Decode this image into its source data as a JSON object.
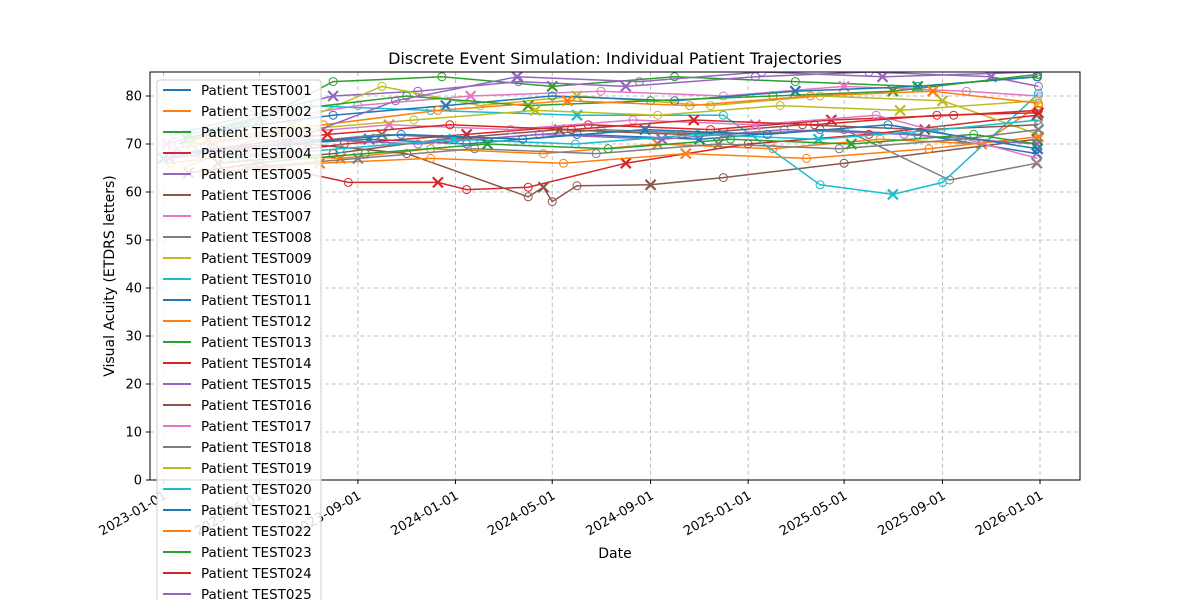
{
  "chart_data": {
    "type": "line",
    "title": "Discrete Event Simulation: Individual Patient Trajectories",
    "xlabel": "Date",
    "ylabel": "Visual Acuity (ETDRS letters)",
    "x_ticks": [
      "2023-01-01",
      "2023-05-01",
      "2023-09-01",
      "2024-01-01",
      "2024-05-01",
      "2024-09-01",
      "2025-01-01",
      "2025-05-01",
      "2025-09-01",
      "2026-01-01"
    ],
    "y_ticks": [
      0,
      10,
      20,
      30,
      40,
      50,
      60,
      70,
      80
    ],
    "xlim": [
      "2022-12-15",
      "2026-02-20"
    ],
    "ylim": [
      0,
      85
    ],
    "grid": true,
    "legend_position": "upper-left",
    "markers": {
      "visit": "circle (open)",
      "injection": "x"
    },
    "series": [
      {
        "name": "Patient TEST001",
        "color": "#1f77b4",
        "points": [
          [
            "2023-01-01",
            67
          ],
          [
            "2023-03-01",
            69
          ],
          [
            "2023-06-01",
            70
          ],
          [
            "2023-09-15",
            71
          ],
          [
            "2024-01-15",
            70
          ],
          [
            "2024-06-01",
            72
          ],
          [
            "2024-11-01",
            71
          ],
          [
            "2025-04-01",
            73
          ],
          [
            "2025-08-01",
            72
          ],
          [
            "2025-12-28",
            68
          ]
        ]
      },
      {
        "name": "Patient TEST002",
        "color": "#ff7f0e",
        "points": [
          [
            "2023-01-10",
            66
          ],
          [
            "2023-04-15",
            68
          ],
          [
            "2023-08-10",
            67
          ],
          [
            "2023-12-01",
            69
          ],
          [
            "2024-04-20",
            68
          ],
          [
            "2024-09-10",
            70
          ],
          [
            "2025-02-01",
            69
          ],
          [
            "2025-06-15",
            71
          ],
          [
            "2025-10-20",
            70
          ],
          [
            "2025-12-30",
            78
          ]
        ]
      },
      {
        "name": "Patient TEST003",
        "color": "#2ca02c",
        "points": [
          [
            "2023-01-20",
            70
          ],
          [
            "2023-05-01",
            75
          ],
          [
            "2023-08-01",
            83
          ],
          [
            "2023-12-15",
            84
          ],
          [
            "2024-05-01",
            82
          ],
          [
            "2024-10-01",
            84
          ],
          [
            "2025-03-01",
            83
          ],
          [
            "2025-08-01",
            82
          ],
          [
            "2025-12-29",
            84
          ]
        ]
      },
      {
        "name": "Patient TEST004",
        "color": "#d62728",
        "points": [
          [
            "2023-02-01",
            64
          ],
          [
            "2023-05-01",
            66
          ],
          [
            "2023-08-20",
            62
          ],
          [
            "2023-12-10",
            62
          ],
          [
            "2024-01-15",
            60.5
          ],
          [
            "2024-04-01",
            61
          ],
          [
            "2024-08-01",
            66
          ],
          [
            "2025-01-01",
            70
          ],
          [
            "2025-06-01",
            72
          ],
          [
            "2025-12-28",
            76
          ]
        ]
      },
      {
        "name": "Patient TEST005",
        "color": "#9467bd",
        "points": [
          [
            "2023-01-15",
            72
          ],
          [
            "2023-04-20",
            76
          ],
          [
            "2023-08-01",
            80
          ],
          [
            "2023-11-15",
            81
          ],
          [
            "2024-03-20",
            83
          ],
          [
            "2024-08-01",
            82
          ],
          [
            "2025-01-10",
            84
          ],
          [
            "2025-06-01",
            85
          ],
          [
            "2025-11-01",
            84
          ],
          [
            "2025-12-30",
            82
          ]
        ]
      },
      {
        "name": "Patient TEST006",
        "color": "#8c564b",
        "points": [
          [
            "2023-03-01",
            69
          ],
          [
            "2023-07-01",
            70
          ],
          [
            "2023-11-01",
            68
          ],
          [
            "2024-04-01",
            59
          ],
          [
            "2024-04-20",
            61
          ],
          [
            "2024-05-01",
            58
          ],
          [
            "2024-06-01",
            61.3
          ],
          [
            "2024-09-01",
            61.5
          ],
          [
            "2024-12-01",
            63
          ],
          [
            "2025-05-01",
            66
          ],
          [
            "2025-12-28",
            71
          ]
        ]
      },
      {
        "name": "Patient TEST007",
        "color": "#e377c2",
        "points": [
          [
            "2023-01-05",
            70
          ],
          [
            "2023-04-01",
            74
          ],
          [
            "2023-09-01",
            78
          ],
          [
            "2024-01-20",
            80
          ],
          [
            "2024-07-01",
            81
          ],
          [
            "2024-12-01",
            80
          ],
          [
            "2025-05-01",
            82
          ],
          [
            "2025-10-01",
            81
          ],
          [
            "2025-12-30",
            80
          ]
        ]
      },
      {
        "name": "Patient TEST008",
        "color": "#7f7f7f",
        "points": [
          [
            "2023-02-10",
            68
          ],
          [
            "2023-06-01",
            70
          ],
          [
            "2023-10-01",
            72
          ],
          [
            "2024-02-01",
            71
          ],
          [
            "2024-07-01",
            73
          ],
          [
            "2024-12-01",
            72
          ],
          [
            "2025-05-01",
            73
          ],
          [
            "2025-09-10",
            62.5
          ],
          [
            "2025-12-28",
            66
          ]
        ]
      },
      {
        "name": "Patient TEST009",
        "color": "#bcbd22",
        "points": [
          [
            "2023-01-25",
            65
          ],
          [
            "2023-06-10",
            74
          ],
          [
            "2023-10-01",
            82
          ],
          [
            "2024-02-01",
            78
          ],
          [
            "2024-06-01",
            80
          ],
          [
            "2024-11-15",
            78
          ],
          [
            "2025-04-01",
            80
          ],
          [
            "2025-09-01",
            79
          ],
          [
            "2025-12-30",
            72
          ]
        ]
      },
      {
        "name": "Patient TEST010",
        "color": "#17becf",
        "points": [
          [
            "2023-02-01",
            72
          ],
          [
            "2023-07-01",
            78
          ],
          [
            "2023-12-01",
            77
          ],
          [
            "2024-06-01",
            76
          ],
          [
            "2024-12-01",
            76
          ],
          [
            "2025-04-01",
            61.5
          ],
          [
            "2025-07-01",
            59.5
          ],
          [
            "2025-09-01",
            62
          ],
          [
            "2025-12-30",
            80.5
          ]
        ]
      },
      {
        "name": "Patient TEST011",
        "color": "#1f77b4",
        "points": [
          [
            "2023-03-15",
            73
          ],
          [
            "2023-08-01",
            76
          ],
          [
            "2023-12-20",
            78
          ],
          [
            "2024-05-01",
            80
          ],
          [
            "2024-10-01",
            79
          ],
          [
            "2025-03-01",
            81
          ],
          [
            "2025-08-01",
            82
          ],
          [
            "2025-12-28",
            84
          ]
        ]
      },
      {
        "name": "Patient TEST012",
        "color": "#ff7f0e",
        "points": [
          [
            "2023-02-20",
            64
          ],
          [
            "2023-07-15",
            66
          ],
          [
            "2023-12-01",
            67
          ],
          [
            "2024-05-15",
            66
          ],
          [
            "2024-10-15",
            68
          ],
          [
            "2025-03-15",
            67
          ],
          [
            "2025-08-15",
            69
          ],
          [
            "2025-12-30",
            71.5
          ]
        ]
      },
      {
        "name": "Patient TEST013",
        "color": "#2ca02c",
        "points": [
          [
            "2023-01-30",
            71
          ],
          [
            "2023-06-01",
            77
          ],
          [
            "2023-11-01",
            80
          ],
          [
            "2024-04-01",
            78
          ],
          [
            "2024-09-01",
            79
          ],
          [
            "2025-02-01",
            80
          ],
          [
            "2025-07-01",
            81
          ],
          [
            "2025-12-29",
            84.5
          ]
        ]
      },
      {
        "name": "Patient TEST014",
        "color": "#d62728",
        "points": [
          [
            "2023-04-01",
            67
          ],
          [
            "2023-08-15",
            70
          ],
          [
            "2024-01-15",
            72
          ],
          [
            "2024-06-15",
            74
          ],
          [
            "2024-11-15",
            73
          ],
          [
            "2025-04-15",
            75
          ],
          [
            "2025-09-15",
            76
          ],
          [
            "2025-12-30",
            77
          ]
        ]
      },
      {
        "name": "Patient TEST015",
        "color": "#9467bd",
        "points": [
          [
            "2023-02-15",
            68
          ],
          [
            "2023-07-01",
            71
          ],
          [
            "2023-11-15",
            70
          ],
          [
            "2024-04-15",
            72
          ],
          [
            "2024-09-15",
            71
          ],
          [
            "2025-02-15",
            73
          ],
          [
            "2025-07-15",
            72
          ],
          [
            "2025-12-28",
            70
          ]
        ]
      },
      {
        "name": "Patient TEST016",
        "color": "#8c564b",
        "points": [
          [
            "2023-03-10",
            66
          ],
          [
            "2023-08-01",
            68
          ],
          [
            "2023-12-15",
            71
          ],
          [
            "2024-05-10",
            73
          ],
          [
            "2024-10-10",
            72
          ],
          [
            "2025-03-10",
            74
          ],
          [
            "2025-08-10",
            73
          ],
          [
            "2025-12-30",
            74
          ]
        ]
      },
      {
        "name": "Patient TEST017",
        "color": "#e377c2",
        "points": [
          [
            "2023-01-12",
            69
          ],
          [
            "2023-05-20",
            72
          ],
          [
            "2023-10-10",
            74
          ],
          [
            "2024-03-10",
            73
          ],
          [
            "2024-08-10",
            75
          ],
          [
            "2025-01-10",
            74
          ],
          [
            "2025-06-10",
            76
          ],
          [
            "2025-12-29",
            67
          ]
        ]
      },
      {
        "name": "Patient TEST018",
        "color": "#7f7f7f",
        "points": [
          [
            "2023-04-10",
            65
          ],
          [
            "2023-09-01",
            67
          ],
          [
            "2024-01-25",
            69
          ],
          [
            "2024-06-25",
            68
          ],
          [
            "2024-11-25",
            70
          ],
          [
            "2025-04-25",
            69
          ],
          [
            "2025-09-25",
            71
          ],
          [
            "2025-12-30",
            73
          ]
        ]
      },
      {
        "name": "Patient TEST019",
        "color": "#bcbd22",
        "points": [
          [
            "2023-02-05",
            70
          ],
          [
            "2023-06-20",
            73
          ],
          [
            "2023-11-10",
            75
          ],
          [
            "2024-04-10",
            77
          ],
          [
            "2024-09-10",
            76
          ],
          [
            "2025-02-10",
            78
          ],
          [
            "2025-07-10",
            77
          ],
          [
            "2025-12-28",
            79
          ]
        ]
      },
      {
        "name": "Patient TEST020",
        "color": "#17becf",
        "points": [
          [
            "2023-03-20",
            67
          ],
          [
            "2023-08-10",
            69
          ],
          [
            "2023-12-30",
            71
          ],
          [
            "2024-05-30",
            70
          ],
          [
            "2024-10-30",
            72
          ],
          [
            "2025-03-30",
            71
          ],
          [
            "2025-08-30",
            73
          ],
          [
            "2025-12-30",
            75
          ]
        ]
      },
      {
        "name": "Patient TEST021",
        "color": "#1f77b4",
        "points": [
          [
            "2023-01-18",
            68
          ],
          [
            "2023-06-05",
            70
          ],
          [
            "2023-10-25",
            72
          ],
          [
            "2024-03-25",
            71
          ],
          [
            "2024-08-25",
            73
          ],
          [
            "2025-01-25",
            72
          ],
          [
            "2025-06-25",
            74
          ],
          [
            "2025-12-29",
            69
          ]
        ]
      },
      {
        "name": "Patient TEST022",
        "color": "#ff7f0e",
        "points": [
          [
            "2023-02-25",
            71
          ],
          [
            "2023-07-20",
            74
          ],
          [
            "2023-12-10",
            77
          ],
          [
            "2024-05-20",
            79
          ],
          [
            "2024-10-20",
            78
          ],
          [
            "2025-03-20",
            80
          ],
          [
            "2025-08-20",
            81
          ],
          [
            "2025-12-30",
            78.5
          ]
        ]
      },
      {
        "name": "Patient TEST023",
        "color": "#2ca02c",
        "points": [
          [
            "2023-04-20",
            66
          ],
          [
            "2023-09-10",
            68
          ],
          [
            "2024-02-10",
            70
          ],
          [
            "2024-07-10",
            69
          ],
          [
            "2024-12-10",
            71
          ],
          [
            "2025-05-10",
            70
          ],
          [
            "2025-10-10",
            72
          ],
          [
            "2025-12-28",
            70
          ]
        ]
      },
      {
        "name": "Patient TEST024",
        "color": "#d62728",
        "points": [
          [
            "2023-03-05",
            69
          ],
          [
            "2023-07-25",
            72
          ],
          [
            "2023-12-25",
            74
          ],
          [
            "2024-05-25",
            73
          ],
          [
            "2024-10-25",
            75
          ],
          [
            "2025-03-25",
            74
          ],
          [
            "2025-08-25",
            76
          ],
          [
            "2025-12-30",
            76.5
          ]
        ]
      },
      {
        "name": "Patient TEST025",
        "color": "#9467bd",
        "points": [
          [
            "2023-01-08",
            67
          ],
          [
            "2023-05-28",
            70
          ],
          [
            "2023-10-18",
            79
          ],
          [
            "2024-03-18",
            84
          ],
          [
            "2024-08-18",
            83
          ],
          [
            "2025-01-18",
            85
          ],
          [
            "2025-06-18",
            84
          ],
          [
            "2025-12-29",
            85
          ]
        ]
      }
    ]
  }
}
